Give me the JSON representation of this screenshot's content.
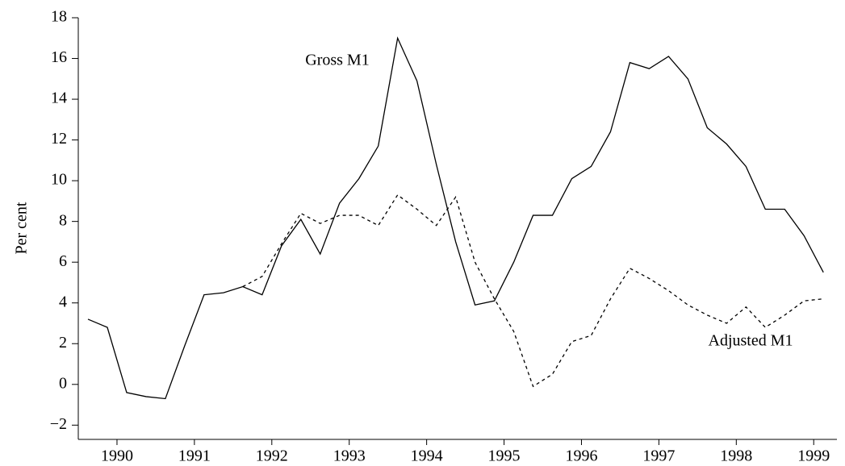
{
  "chart_data": {
    "type": "line",
    "y_label": "Per cent",
    "annotations": [
      "Gross M1",
      "Adjusted M1"
    ],
    "x": [
      1990.125,
      1990.375,
      1990.625,
      1990.875,
      1991.125,
      1991.375,
      1991.625,
      1991.875,
      1992.125,
      1992.375,
      1992.625,
      1992.875,
      1993.125,
      1993.375,
      1993.625,
      1993.875,
      1994.125,
      1994.375,
      1994.625,
      1994.875,
      1995.125,
      1995.375,
      1995.625,
      1995.875,
      1996.125,
      1996.375,
      1996.625,
      1996.875,
      1997.125,
      1997.375,
      1997.625,
      1997.875,
      1998.125,
      1998.375,
      1998.625,
      1998.875,
      1999.125,
      1999.375,
      1999.625
    ],
    "series": [
      {
        "name": "Gross M1",
        "color": "#000000",
        "dash": "solid",
        "values": [
          3.2,
          2.8,
          -0.4,
          -0.6,
          -0.7,
          1.9,
          4.4,
          4.5,
          4.8,
          4.4,
          6.8,
          8.1,
          6.4,
          8.9,
          10.1,
          11.7,
          17.0,
          14.9,
          10.8,
          7.0,
          3.9,
          4.1,
          6.0,
          8.3,
          8.3,
          10.1,
          10.7,
          12.4,
          15.8,
          15.5,
          16.1,
          15.0,
          12.6,
          11.8,
          10.7,
          8.6,
          8.6,
          7.3,
          5.5
        ]
      },
      {
        "name": "Adjusted M1",
        "color": "#000000",
        "dash": "dashed",
        "values": [
          null,
          null,
          null,
          null,
          null,
          null,
          null,
          null,
          4.8,
          5.3,
          6.9,
          8.4,
          7.9,
          8.3,
          8.3,
          7.8,
          9.3,
          8.6,
          7.8,
          9.2,
          6.0,
          4.2,
          2.6,
          -0.1,
          0.5,
          2.1,
          2.4,
          4.2,
          5.7,
          5.2,
          4.6,
          3.9,
          3.4,
          3.0,
          3.8,
          2.8,
          3.4,
          4.1,
          4.2
        ]
      }
    ],
    "xlim": [
      1990.0,
      1999.8
    ],
    "xticks": [
      {
        "value": 1990.5,
        "label": "1990"
      },
      {
        "value": 1991.5,
        "label": "1991"
      },
      {
        "value": 1992.5,
        "label": "1992"
      },
      {
        "value": 1993.5,
        "label": "1993"
      },
      {
        "value": 1994.5,
        "label": "1994"
      },
      {
        "value": 1995.5,
        "label": "1995"
      },
      {
        "value": 1996.5,
        "label": "1996"
      },
      {
        "value": 1997.5,
        "label": "1997"
      },
      {
        "value": 1998.5,
        "label": "1998"
      },
      {
        "value": 1999.5,
        "label": "1999"
      }
    ],
    "ylim": [
      -2.7,
      18
    ],
    "yticks": [
      {
        "value": -2,
        "label": "−2"
      },
      0,
      2,
      4,
      6,
      8,
      10,
      12,
      14,
      16,
      18
    ],
    "grid": false
  }
}
